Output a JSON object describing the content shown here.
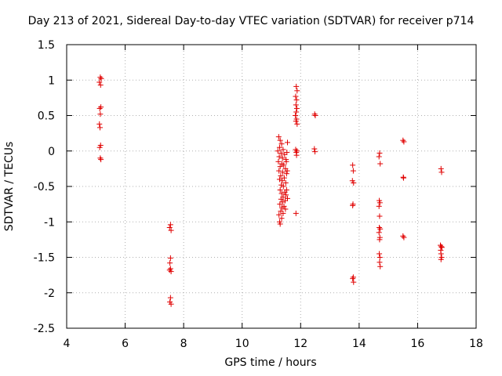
{
  "chart_data": {
    "type": "scatter",
    "title": "Day 213 of 2021, Sidereal Day-to-day VTEC variation (SDTVAR) for receiver p714",
    "xlabel": "GPS time / hours",
    "ylabel": "SDTVAR / TECUs",
    "xlim": [
      4,
      18
    ],
    "ylim": [
      -2.5,
      1.5
    ],
    "xticks": [
      "4",
      "6",
      "8",
      "10",
      "12",
      "14",
      "16",
      "18"
    ],
    "yticks": [
      "1.5",
      "1",
      "0.5",
      "0",
      "-0.5",
      "-1",
      "-1.5",
      "-2",
      "-2.5"
    ],
    "grid": true,
    "marker": "+",
    "color": "#e00000",
    "points": [
      [
        5.15,
        1.04
      ],
      [
        5.18,
        1.02
      ],
      [
        5.12,
        0.97
      ],
      [
        5.16,
        0.93
      ],
      [
        5.17,
        0.62
      ],
      [
        5.13,
        0.6
      ],
      [
        5.15,
        0.52
      ],
      [
        5.12,
        0.38
      ],
      [
        5.14,
        0.33
      ],
      [
        5.16,
        0.08
      ],
      [
        5.13,
        0.05
      ],
      [
        5.15,
        -0.1
      ],
      [
        5.17,
        -0.12
      ],
      [
        7.55,
        -1.04
      ],
      [
        7.52,
        -1.08
      ],
      [
        7.57,
        -1.12
      ],
      [
        7.55,
        -1.51
      ],
      [
        7.53,
        -1.58
      ],
      [
        7.55,
        -1.66
      ],
      [
        7.52,
        -1.68
      ],
      [
        7.57,
        -1.7
      ],
      [
        7.55,
        -2.07
      ],
      [
        7.53,
        -2.13
      ],
      [
        7.57,
        -2.16
      ],
      [
        11.25,
        0.2
      ],
      [
        11.3,
        0.15
      ],
      [
        11.35,
        0.1
      ],
      [
        11.28,
        0.05
      ],
      [
        11.4,
        0.02
      ],
      [
        11.22,
        0.0
      ],
      [
        11.33,
        -0.03
      ],
      [
        11.45,
        -0.05
      ],
      [
        11.27,
        -0.08
      ],
      [
        11.38,
        -0.1
      ],
      [
        11.5,
        -0.12
      ],
      [
        11.24,
        -0.15
      ],
      [
        11.36,
        -0.18
      ],
      [
        11.42,
        -0.2
      ],
      [
        11.3,
        -0.22
      ],
      [
        11.48,
        -0.25
      ],
      [
        11.26,
        -0.28
      ],
      [
        11.39,
        -0.3
      ],
      [
        11.52,
        -0.32
      ],
      [
        11.32,
        -0.35
      ],
      [
        11.44,
        -0.38
      ],
      [
        11.28,
        -0.4
      ],
      [
        11.37,
        -0.42
      ],
      [
        11.49,
        -0.45
      ],
      [
        11.34,
        -0.48
      ],
      [
        11.41,
        -0.5
      ],
      [
        11.3,
        -0.55
      ],
      [
        11.46,
        -0.58
      ],
      [
        11.35,
        -0.6
      ],
      [
        11.5,
        -0.62
      ],
      [
        11.4,
        -0.65
      ],
      [
        11.33,
        -0.68
      ],
      [
        11.47,
        -0.7
      ],
      [
        11.38,
        -0.72
      ],
      [
        11.29,
        -0.75
      ],
      [
        11.43,
        -0.78
      ],
      [
        11.36,
        -0.8
      ],
      [
        11.48,
        -0.82
      ],
      [
        11.32,
        -0.85
      ],
      [
        11.4,
        -0.88
      ],
      [
        11.26,
        -0.9
      ],
      [
        11.35,
        -0.95
      ],
      [
        11.28,
        -1.0
      ],
      [
        11.3,
        -1.03
      ],
      [
        11.55,
        0.12
      ],
      [
        11.53,
        -0.02
      ],
      [
        11.51,
        -0.15
      ],
      [
        11.54,
        -0.28
      ],
      [
        11.52,
        -0.55
      ],
      [
        11.55,
        -0.67
      ],
      [
        11.85,
        0.91
      ],
      [
        11.88,
        0.85
      ],
      [
        11.83,
        0.77
      ],
      [
        11.86,
        0.72
      ],
      [
        11.84,
        0.65
      ],
      [
        11.87,
        0.6
      ],
      [
        11.85,
        0.55
      ],
      [
        11.82,
        0.5
      ],
      [
        11.86,
        0.45
      ],
      [
        11.84,
        0.42
      ],
      [
        11.88,
        0.38
      ],
      [
        11.83,
        0.02
      ],
      [
        11.87,
        0.0
      ],
      [
        11.85,
        -0.02
      ],
      [
        11.86,
        -0.06
      ],
      [
        11.84,
        -0.88
      ],
      [
        12.48,
        0.52
      ],
      [
        12.5,
        0.5
      ],
      [
        12.47,
        0.03
      ],
      [
        12.49,
        -0.01
      ],
      [
        13.78,
        -0.2
      ],
      [
        13.8,
        -0.28
      ],
      [
        13.77,
        -0.42
      ],
      [
        13.81,
        -0.45
      ],
      [
        13.79,
        -0.75
      ],
      [
        13.78,
        -0.77
      ],
      [
        13.8,
        -1.78
      ],
      [
        13.78,
        -1.8
      ],
      [
        13.81,
        -1.85
      ],
      [
        14.7,
        -0.03
      ],
      [
        14.68,
        -0.08
      ],
      [
        14.72,
        -0.18
      ],
      [
        14.69,
        -0.7
      ],
      [
        14.71,
        -0.73
      ],
      [
        14.68,
        -0.78
      ],
      [
        14.7,
        -0.92
      ],
      [
        14.69,
        -1.08
      ],
      [
        14.72,
        -1.1
      ],
      [
        14.68,
        -1.15
      ],
      [
        14.71,
        -1.22
      ],
      [
        14.7,
        -1.25
      ],
      [
        14.69,
        -1.45
      ],
      [
        14.71,
        -1.5
      ],
      [
        14.7,
        -1.57
      ],
      [
        14.72,
        -1.63
      ],
      [
        15.5,
        0.15
      ],
      [
        15.53,
        0.13
      ],
      [
        15.51,
        -0.37
      ],
      [
        15.52,
        -0.38
      ],
      [
        15.5,
        -1.2
      ],
      [
        15.53,
        -1.22
      ],
      [
        16.8,
        -0.25
      ],
      [
        16.82,
        -0.3
      ],
      [
        16.78,
        -1.33
      ],
      [
        16.81,
        -1.35
      ],
      [
        16.83,
        -1.36
      ],
      [
        16.79,
        -1.4
      ],
      [
        16.8,
        -1.45
      ],
      [
        16.82,
        -1.5
      ],
      [
        16.8,
        -1.53
      ]
    ]
  }
}
